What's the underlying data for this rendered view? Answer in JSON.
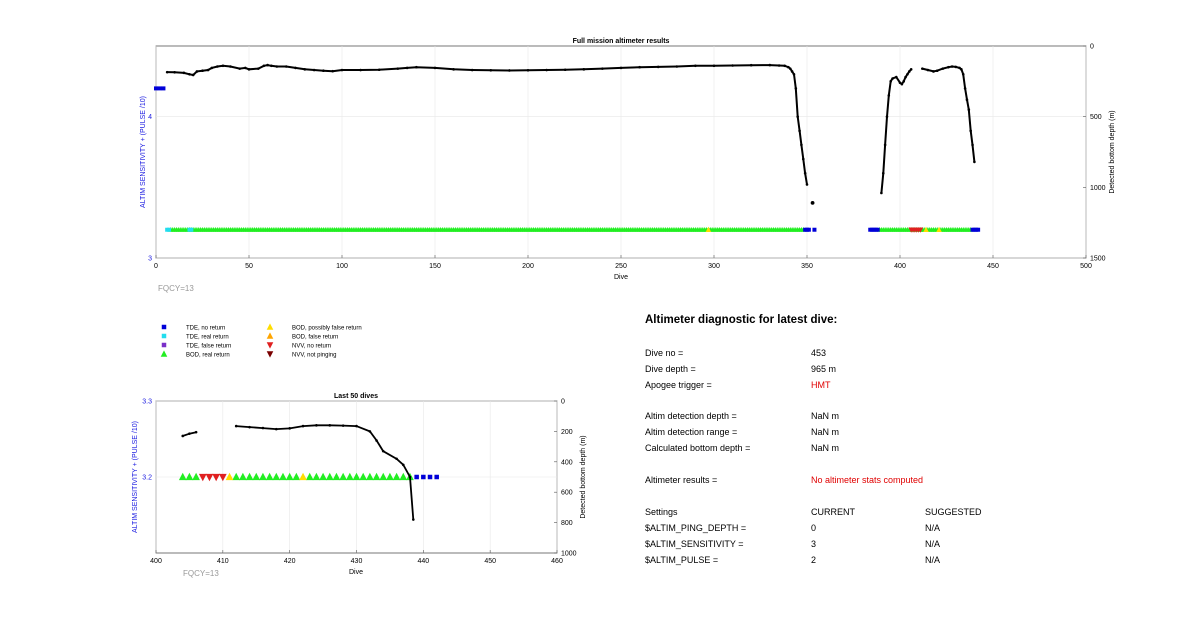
{
  "colors": {
    "tde_no_return": "#0000d8",
    "tde_real_return": "#22ddee",
    "tde_false_return": "#7a2fc8",
    "bod_real_return": "#22ee22",
    "bod_possibly_false_return": "#ffdd00",
    "bod_false_return": "#ffa500",
    "nvv_no_return": "#e02020",
    "nvv_not_pinging": "#7a0000",
    "axis_left": "#1a1ae0",
    "alert_text": "#e00000",
    "fqcy_text": "#999999"
  },
  "chart_data": [
    {
      "type": "scatter",
      "title": "Full mission altimeter results",
      "xlabel": "Dive",
      "ylabel_left": "ALTIM SENSITIVITY + (PULSE /10)",
      "ylabel_right": "Detected bottom depth (m)",
      "xlim": [
        0,
        500
      ],
      "ylim_left": [
        3,
        4.5
      ],
      "ylim_right": [
        0,
        1500
      ],
      "right_axis_reversed": true,
      "x_ticks": [
        "0",
        "50",
        "100",
        "150",
        "200",
        "250",
        "300",
        "350",
        "400",
        "450",
        "500"
      ],
      "y_left_ticks": [
        "3",
        "4"
      ],
      "y_right_ticks": [
        "0",
        "500",
        "1000",
        "1500"
      ],
      "grid": true,
      "annotation": "FQCY=13",
      "bottom_depth_series": [
        {
          "name": "",
          "points": [
            [
              6,
              185
            ],
            [
              10,
              186
            ],
            [
              15,
              190
            ],
            [
              18,
              200
            ],
            [
              20,
              205
            ],
            [
              22,
              180
            ],
            [
              25,
              175
            ],
            [
              28,
              170
            ],
            [
              30,
              155
            ],
            [
              33,
              145
            ],
            [
              36,
              140
            ],
            [
              40,
              145
            ],
            [
              45,
              160
            ],
            [
              48,
              155
            ],
            [
              50,
              165
            ],
            [
              55,
              160
            ],
            [
              58,
              140
            ],
            [
              60,
              135
            ],
            [
              62,
              140
            ],
            [
              65,
              145
            ],
            [
              70,
              145
            ],
            [
              75,
              155
            ],
            [
              80,
              165
            ],
            [
              85,
              170
            ],
            [
              90,
              175
            ],
            [
              95,
              178
            ],
            [
              100,
              170
            ],
            [
              110,
              170
            ],
            [
              120,
              168
            ],
            [
              130,
              160
            ],
            [
              135,
              155
            ],
            [
              140,
              150
            ],
            [
              150,
              155
            ],
            [
              160,
              165
            ],
            [
              170,
              170
            ],
            [
              180,
              172
            ],
            [
              190,
              173
            ],
            [
              200,
              172
            ],
            [
              210,
              170
            ],
            [
              220,
              168
            ],
            [
              230,
              165
            ],
            [
              240,
              160
            ],
            [
              250,
              155
            ],
            [
              260,
              150
            ],
            [
              270,
              148
            ],
            [
              280,
              145
            ],
            [
              290,
              140
            ],
            [
              300,
              140
            ],
            [
              310,
              138
            ],
            [
              320,
              136
            ],
            [
              330,
              135
            ],
            [
              335,
              138
            ],
            [
              338,
              140
            ],
            [
              340,
              150
            ],
            [
              341,
              160
            ],
            [
              342,
              180
            ],
            [
              343,
              200
            ],
            [
              344,
              300
            ],
            [
              345,
              500
            ],
            [
              346,
              600
            ],
            [
              347,
              700
            ],
            [
              348,
              800
            ],
            [
              349,
              900
            ],
            [
              350,
              980
            ]
          ]
        },
        {
          "name": "",
          "points": [
            [
              390,
              1040
            ],
            [
              391,
              900
            ],
            [
              392,
              700
            ],
            [
              393,
              500
            ],
            [
              394,
              350
            ],
            [
              395,
              250
            ],
            [
              396,
              230
            ],
            [
              398,
              220
            ],
            [
              400,
              260
            ],
            [
              401,
              270
            ],
            [
              402,
              250
            ],
            [
              403,
              220
            ],
            [
              404,
              200
            ],
            [
              405,
              180
            ],
            [
              406,
              165
            ]
          ]
        },
        {
          "name": "",
          "points": [
            [
              412,
              160
            ],
            [
              415,
              170
            ],
            [
              418,
              180
            ],
            [
              420,
              175
            ],
            [
              423,
              160
            ],
            [
              426,
              150
            ],
            [
              428,
              145
            ],
            [
              430,
              148
            ],
            [
              432,
              155
            ],
            [
              433,
              165
            ],
            [
              434,
              200
            ],
            [
              435,
              300
            ],
            [
              436,
              380
            ],
            [
              437,
              450
            ],
            [
              438,
              600
            ],
            [
              439,
              700
            ],
            [
              440,
              820
            ]
          ]
        }
      ],
      "bottom_depth_isolated": [
        [
          353,
          1110
        ]
      ],
      "tde_blue_markers": [
        [
          0,
          4.2
        ],
        [
          2,
          4.2
        ],
        [
          4,
          4.2
        ],
        [
          349,
          3.2
        ],
        [
          350,
          3.2
        ],
        [
          351,
          3.2
        ],
        [
          354,
          3.2
        ],
        [
          384,
          3.2
        ],
        [
          385,
          3.2
        ],
        [
          386,
          3.2
        ],
        [
          387,
          3.2
        ],
        [
          388,
          3.2
        ],
        [
          439,
          3.2
        ],
        [
          440,
          3.2
        ],
        [
          441,
          3.2
        ],
        [
          442,
          3.2
        ]
      ],
      "tde_cyan_markers": [
        [
          6,
          3.2
        ],
        [
          7,
          3.2
        ],
        [
          18,
          3.2
        ],
        [
          19,
          3.2
        ]
      ],
      "bod_green_run": [
        {
          "from": 8,
          "to": 348,
          "y": 3.2
        },
        {
          "from": 389,
          "to": 438,
          "y": 3.2
        }
      ],
      "bod_yellow_markers": [
        [
          297,
          3.2
        ],
        [
          414,
          3.2
        ],
        [
          421,
          3.2
        ]
      ],
      "nvv_red_markers": [
        [
          406,
          3.2
        ],
        [
          407,
          3.2
        ],
        [
          408,
          3.2
        ],
        [
          409,
          3.2
        ],
        [
          410,
          3.2
        ],
        [
          411,
          3.2
        ]
      ]
    },
    {
      "type": "scatter",
      "title": "Last 50 dives",
      "xlabel": "Dive",
      "ylabel_left": "ALTIM SENSITIVITY + (PULSE /10)",
      "ylabel_right": "Detected bottom depth (m)",
      "xlim": [
        400,
        460
      ],
      "ylim_left": [
        3.1,
        3.3
      ],
      "ylim_right": [
        0,
        1000
      ],
      "right_axis_reversed": true,
      "x_ticks": [
        "400",
        "410",
        "420",
        "430",
        "440",
        "450",
        "460"
      ],
      "y_left_ticks": [
        "3.3",
        "3.2"
      ],
      "y_right_ticks": [
        "0",
        "200",
        "400",
        "600",
        "800",
        "1000"
      ],
      "grid": true,
      "annotation": "FQCY=13",
      "bottom_depth_series": [
        {
          "name": "",
          "points": [
            [
              404,
              230
            ],
            [
              405,
              215
            ],
            [
              406,
              205
            ]
          ]
        },
        {
          "name": "",
          "points": [
            [
              412,
              165
            ],
            [
              414,
              172
            ],
            [
              416,
              178
            ],
            [
              418,
              185
            ],
            [
              420,
              180
            ],
            [
              422,
              165
            ],
            [
              424,
              160
            ],
            [
              426,
              160
            ],
            [
              428,
              162
            ],
            [
              430,
              165
            ],
            [
              432,
              200
            ],
            [
              433,
              260
            ],
            [
              434,
              330
            ],
            [
              436,
              380
            ],
            [
              437,
              420
            ],
            [
              438,
              500
            ],
            [
              438.5,
              780
            ]
          ]
        }
      ],
      "bod_green_markers": [
        404,
        405,
        406,
        412,
        413,
        414,
        415,
        416,
        417,
        418,
        419,
        420,
        421,
        423,
        424,
        425,
        426,
        427,
        428,
        429,
        430,
        431,
        432,
        433,
        434,
        435,
        436,
        437,
        438
      ],
      "bod_yellow_markers": [
        411,
        422
      ],
      "nvv_red_markers": [
        407,
        408,
        409,
        410
      ],
      "tde_blue_markers": [
        439,
        440,
        441,
        442
      ],
      "y_value": 3.2
    }
  ],
  "legend": {
    "items": [
      {
        "label": "TDE, no return",
        "marker": "square",
        "color_key": "tde_no_return"
      },
      {
        "label": "TDE, real return",
        "marker": "square",
        "color_key": "tde_real_return"
      },
      {
        "label": "TDE, false return",
        "marker": "square",
        "color_key": "tde_false_return"
      },
      {
        "label": "BOD, real return",
        "marker": "triangle-up",
        "color_key": "bod_real_return"
      },
      {
        "label": "BOD, possibly false return",
        "marker": "triangle-up",
        "color_key": "bod_possibly_false_return"
      },
      {
        "label": "BOD, false return",
        "marker": "triangle-up",
        "color_key": "bod_false_return"
      },
      {
        "label": "NVV, no return",
        "marker": "triangle-down",
        "color_key": "nvv_no_return"
      },
      {
        "label": "NVV, not pinging",
        "marker": "triangle-down",
        "color_key": "nvv_not_pinging"
      }
    ]
  },
  "diagnostic": {
    "title": "Altimeter diagnostic for latest dive:",
    "dive_no_label": "Dive no =",
    "dive_no_value": "453",
    "dive_depth_label": "Dive depth =",
    "dive_depth_value": "965 m",
    "apogee_label": "Apogee trigger =",
    "apogee_value": "HMT",
    "detect_depth_label": "Altim detection depth =",
    "detect_depth_value": "NaN m",
    "detect_range_label": "Altim detection range =",
    "detect_range_value": "NaN m",
    "calc_bottom_label": "Calculated bottom depth =",
    "calc_bottom_value": "NaN m",
    "results_label": "Altimeter results =",
    "results_value": "No altimeter stats computed",
    "settings_label": "Settings",
    "current_label": "CURRENT",
    "suggested_label": "SUGGESTED",
    "settings": [
      {
        "name": "$ALTIM_PING_DEPTH =",
        "current": "0",
        "suggested": "N/A"
      },
      {
        "name": "$ALTIM_SENSITIVITY =",
        "current": "3",
        "suggested": "N/A"
      },
      {
        "name": "$ALTIM_PULSE =",
        "current": "2",
        "suggested": "N/A"
      }
    ]
  }
}
